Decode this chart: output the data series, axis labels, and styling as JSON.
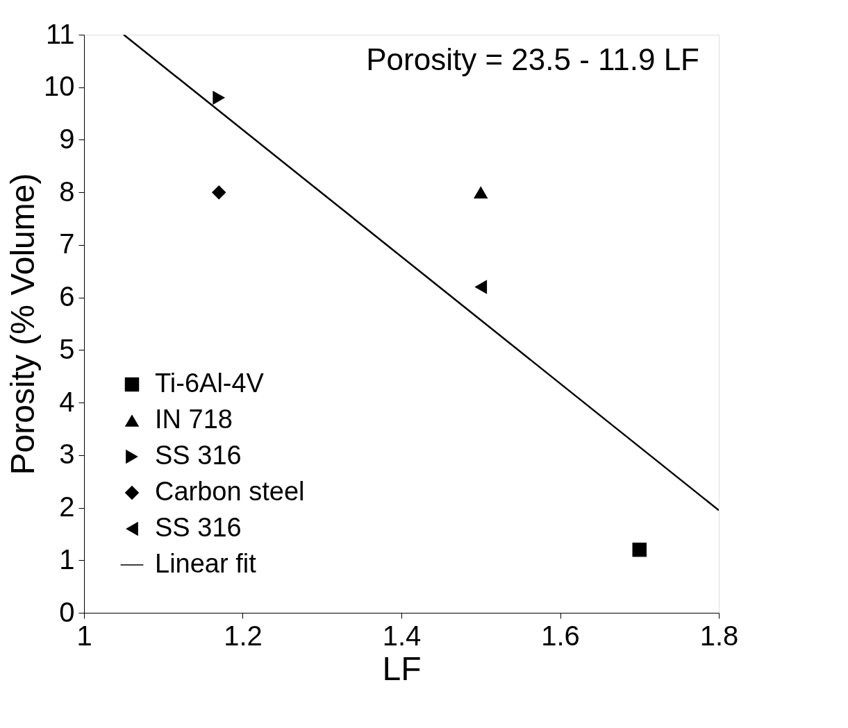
{
  "chart_data": {
    "type": "scatter",
    "xlabel": "LF",
    "ylabel": "Porosity (% Volume)",
    "xlim": [
      1,
      1.8
    ],
    "xticks": [
      1,
      1.2,
      1.4,
      1.6,
      1.8
    ],
    "ylim": [
      0,
      11
    ],
    "yticks": [
      0,
      1,
      2,
      3,
      4,
      5,
      6,
      7,
      8,
      9,
      10,
      11
    ],
    "grid": false,
    "legend": "bottom left",
    "annotations": [
      "Porosity = 23.5 - 11.9 LF"
    ],
    "series": [
      {
        "name": "Ti-6Al-4V",
        "color": "#000000",
        "marker": "square",
        "x": [
          1.7
        ],
        "values": [
          1.2
        ]
      },
      {
        "name": "IN 718",
        "color": "#000000",
        "marker": "triangle",
        "x": [
          1.5
        ],
        "values": [
          8.0
        ]
      },
      {
        "name": "SS 316",
        "color": "#000000",
        "marker": "triangle-right",
        "x": [
          1.17
        ],
        "values": [
          9.8
        ]
      },
      {
        "name": "Carbon steel",
        "color": "#000000",
        "marker": "diamond",
        "x": [
          1.17
        ],
        "values": [
          8.0
        ]
      },
      {
        "name": "SS 316",
        "color": "#000000",
        "marker": "triangle-left",
        "x": [
          1.5
        ],
        "values": [
          6.2
        ]
      },
      {
        "name": "Linear fit",
        "type": "line",
        "color": "#000000",
        "line_style": "solid",
        "x": [
          1.05,
          1.8
        ],
        "values": [
          11.0,
          1.95
        ]
      }
    ]
  }
}
